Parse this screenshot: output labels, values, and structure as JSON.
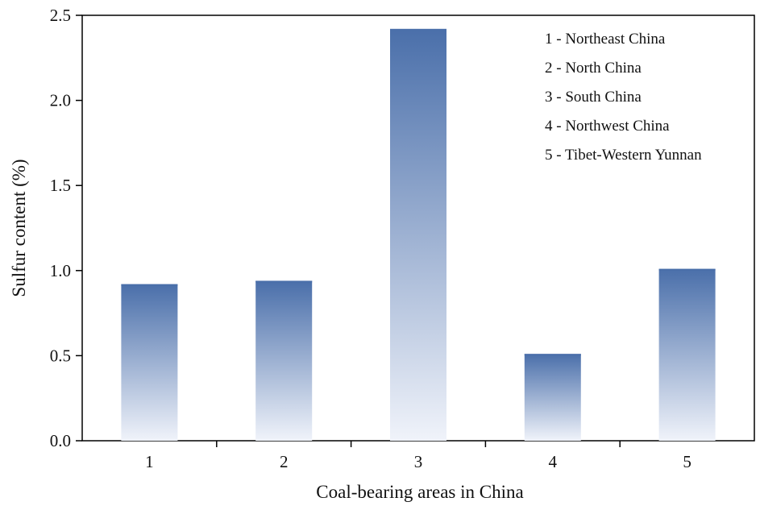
{
  "chart_data": {
    "type": "bar",
    "title": "",
    "xlabel": "Coal-bearing areas in China",
    "ylabel": "Sulfur content (%)",
    "categories": [
      "1",
      "2",
      "3",
      "4",
      "5"
    ],
    "values": [
      0.92,
      0.94,
      2.42,
      0.51,
      1.01
    ],
    "ylim": [
      0,
      2.5
    ],
    "yticks": [
      "0.0",
      "0.5",
      "1.0",
      "1.5",
      "2.0",
      "2.5"
    ],
    "grid": false,
    "legend_placement": "top-right",
    "legend": [
      "1 - Northeast China",
      "2 - North China",
      "3 - South China",
      "4 - Northwest China",
      "5 - Tibet-Western Yunnan"
    ],
    "colors": {
      "bar_top": "#4a6faa",
      "bar_bottom": "#f0f3fa",
      "axis": "#000000"
    }
  }
}
